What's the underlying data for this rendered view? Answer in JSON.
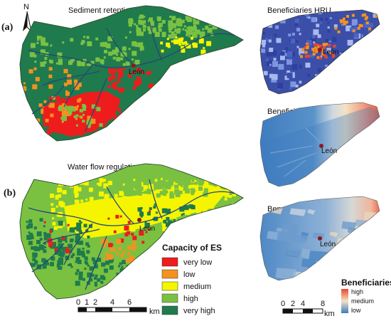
{
  "panel_a": {
    "label": "(a)",
    "title": "Sediment retention",
    "city": "León"
  },
  "panel_b": {
    "label": "(b)",
    "title": "Water flow regulation",
    "city": "León"
  },
  "north": "N",
  "right_panels": {
    "hru": {
      "title": "Beneficiaries HRU",
      "city": "León"
    },
    "all": {
      "title": "Beneficiaries all",
      "city": "León"
    },
    "rural": {
      "title": "Beneficiaries rural",
      "city": "León"
    }
  },
  "legend_es": {
    "title": "Capacity of ES",
    "items": [
      {
        "label": "very low",
        "color": "#ee1c1c"
      },
      {
        "label": "low",
        "color": "#f39220"
      },
      {
        "label": "medium",
        "color": "#f5f500"
      },
      {
        "label": "high",
        "color": "#7ac142"
      },
      {
        "label": "very high",
        "color": "#1f7a4d"
      }
    ]
  },
  "scale_left": {
    "ticks": [
      "0",
      "1",
      "2",
      "4",
      "6"
    ],
    "unit": "km"
  },
  "scale_right": {
    "ticks": [
      "0",
      "2",
      "4",
      "8"
    ],
    "unit": "km"
  },
  "legend_ben": {
    "title": "Beneficiaries",
    "levels": [
      "high",
      "medium",
      "low"
    ],
    "colors": {
      "high": "#e8472f",
      "medium": "#f3e3c3",
      "low": "#3d7bbf"
    }
  }
}
